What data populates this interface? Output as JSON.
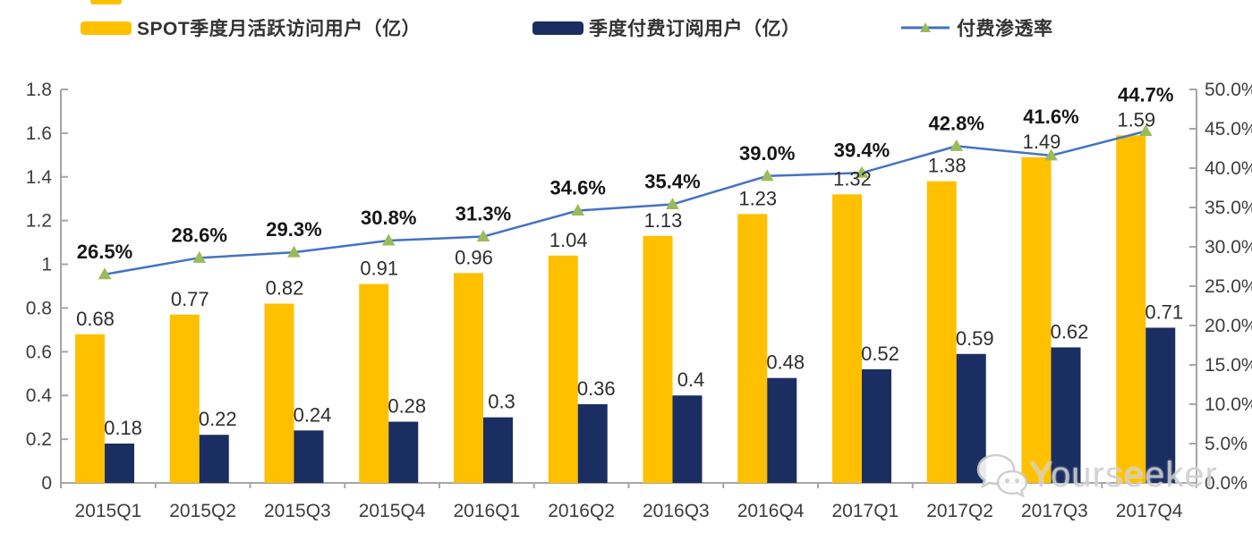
{
  "legend": {
    "items": [
      {
        "label": "SPOT季度月活跃访问用户（亿）"
      },
      {
        "label": "季度付费订阅用户（亿）"
      },
      {
        "label": "付费渗透率"
      }
    ]
  },
  "watermark": {
    "text": "Yourseeker"
  },
  "colors": {
    "mau_bar": "#FFC000",
    "subs_bar": "#1A2E62",
    "line": "#4472C4",
    "marker": "#9BBB59",
    "axis": "#A6A6A6",
    "tick_text": "#3D3D3D",
    "value_text": "#2E2E2E",
    "pct_text": "#161616",
    "watermark_text": "#CFCFCF"
  },
  "chart_data": {
    "type": "combo",
    "title": "",
    "categories": [
      "2015Q1",
      "2015Q2",
      "2015Q3",
      "2015Q4",
      "2016Q1",
      "2016Q2",
      "2016Q3",
      "2016Q4",
      "2017Q1",
      "2017Q2",
      "2017Q3",
      "2017Q4"
    ],
    "series": [
      {
        "name": "SPOT季度月活跃访问用户（亿）",
        "type": "bar",
        "axis": "left",
        "color": "#FFC000",
        "values": [
          0.68,
          0.77,
          0.82,
          0.91,
          0.96,
          1.04,
          1.13,
          1.23,
          1.32,
          1.38,
          1.49,
          1.59
        ],
        "labels": [
          "0.68",
          "0.77",
          "0.82",
          "0.91",
          "0.96",
          "1.04",
          "1.13",
          "1.23",
          "1.32",
          "1.38",
          "1.49",
          "1.59"
        ]
      },
      {
        "name": "季度付费订阅用户（亿）",
        "type": "bar",
        "axis": "left",
        "color": "#1A2E62",
        "values": [
          0.18,
          0.22,
          0.24,
          0.28,
          0.3,
          0.36,
          0.4,
          0.48,
          0.52,
          0.59,
          0.62,
          0.71
        ],
        "labels": [
          "0.18",
          "0.22",
          "0.24",
          "0.28",
          "0.3",
          "0.36",
          "0.4",
          "0.48",
          "0.52",
          "0.59",
          "0.62",
          "0.71"
        ]
      },
      {
        "name": "付费渗透率",
        "type": "line",
        "axis": "right",
        "color": "#4472C4",
        "marker": "triangle",
        "marker_color": "#9BBB59",
        "values": [
          26.5,
          28.6,
          29.3,
          30.8,
          31.3,
          34.6,
          35.4,
          39.0,
          39.4,
          42.8,
          41.6,
          44.7
        ],
        "labels": [
          "26.5%",
          "28.6%",
          "29.3%",
          "30.8%",
          "31.3%",
          "34.6%",
          "35.4%",
          "39.0%",
          "39.4%",
          "42.8%",
          "41.6%",
          "44.7%"
        ]
      }
    ],
    "left_axis": {
      "min": 0,
      "max": 1.8,
      "step": 0.2,
      "tick_labels": [
        "0",
        "0.2",
        "0.4",
        "0.6",
        "0.8",
        "1",
        "1.2",
        "1.4",
        "1.6",
        "1.8"
      ]
    },
    "right_axis": {
      "min": 0,
      "max": 50,
      "step": 5,
      "tick_labels": [
        "0.0%",
        "5.0%",
        "10.0%",
        "15.0%",
        "20.0%",
        "25.0%",
        "30.0%",
        "35.0%",
        "40.0%",
        "45.0%",
        "50.0%"
      ]
    },
    "grid": false,
    "legend_position": "top"
  }
}
